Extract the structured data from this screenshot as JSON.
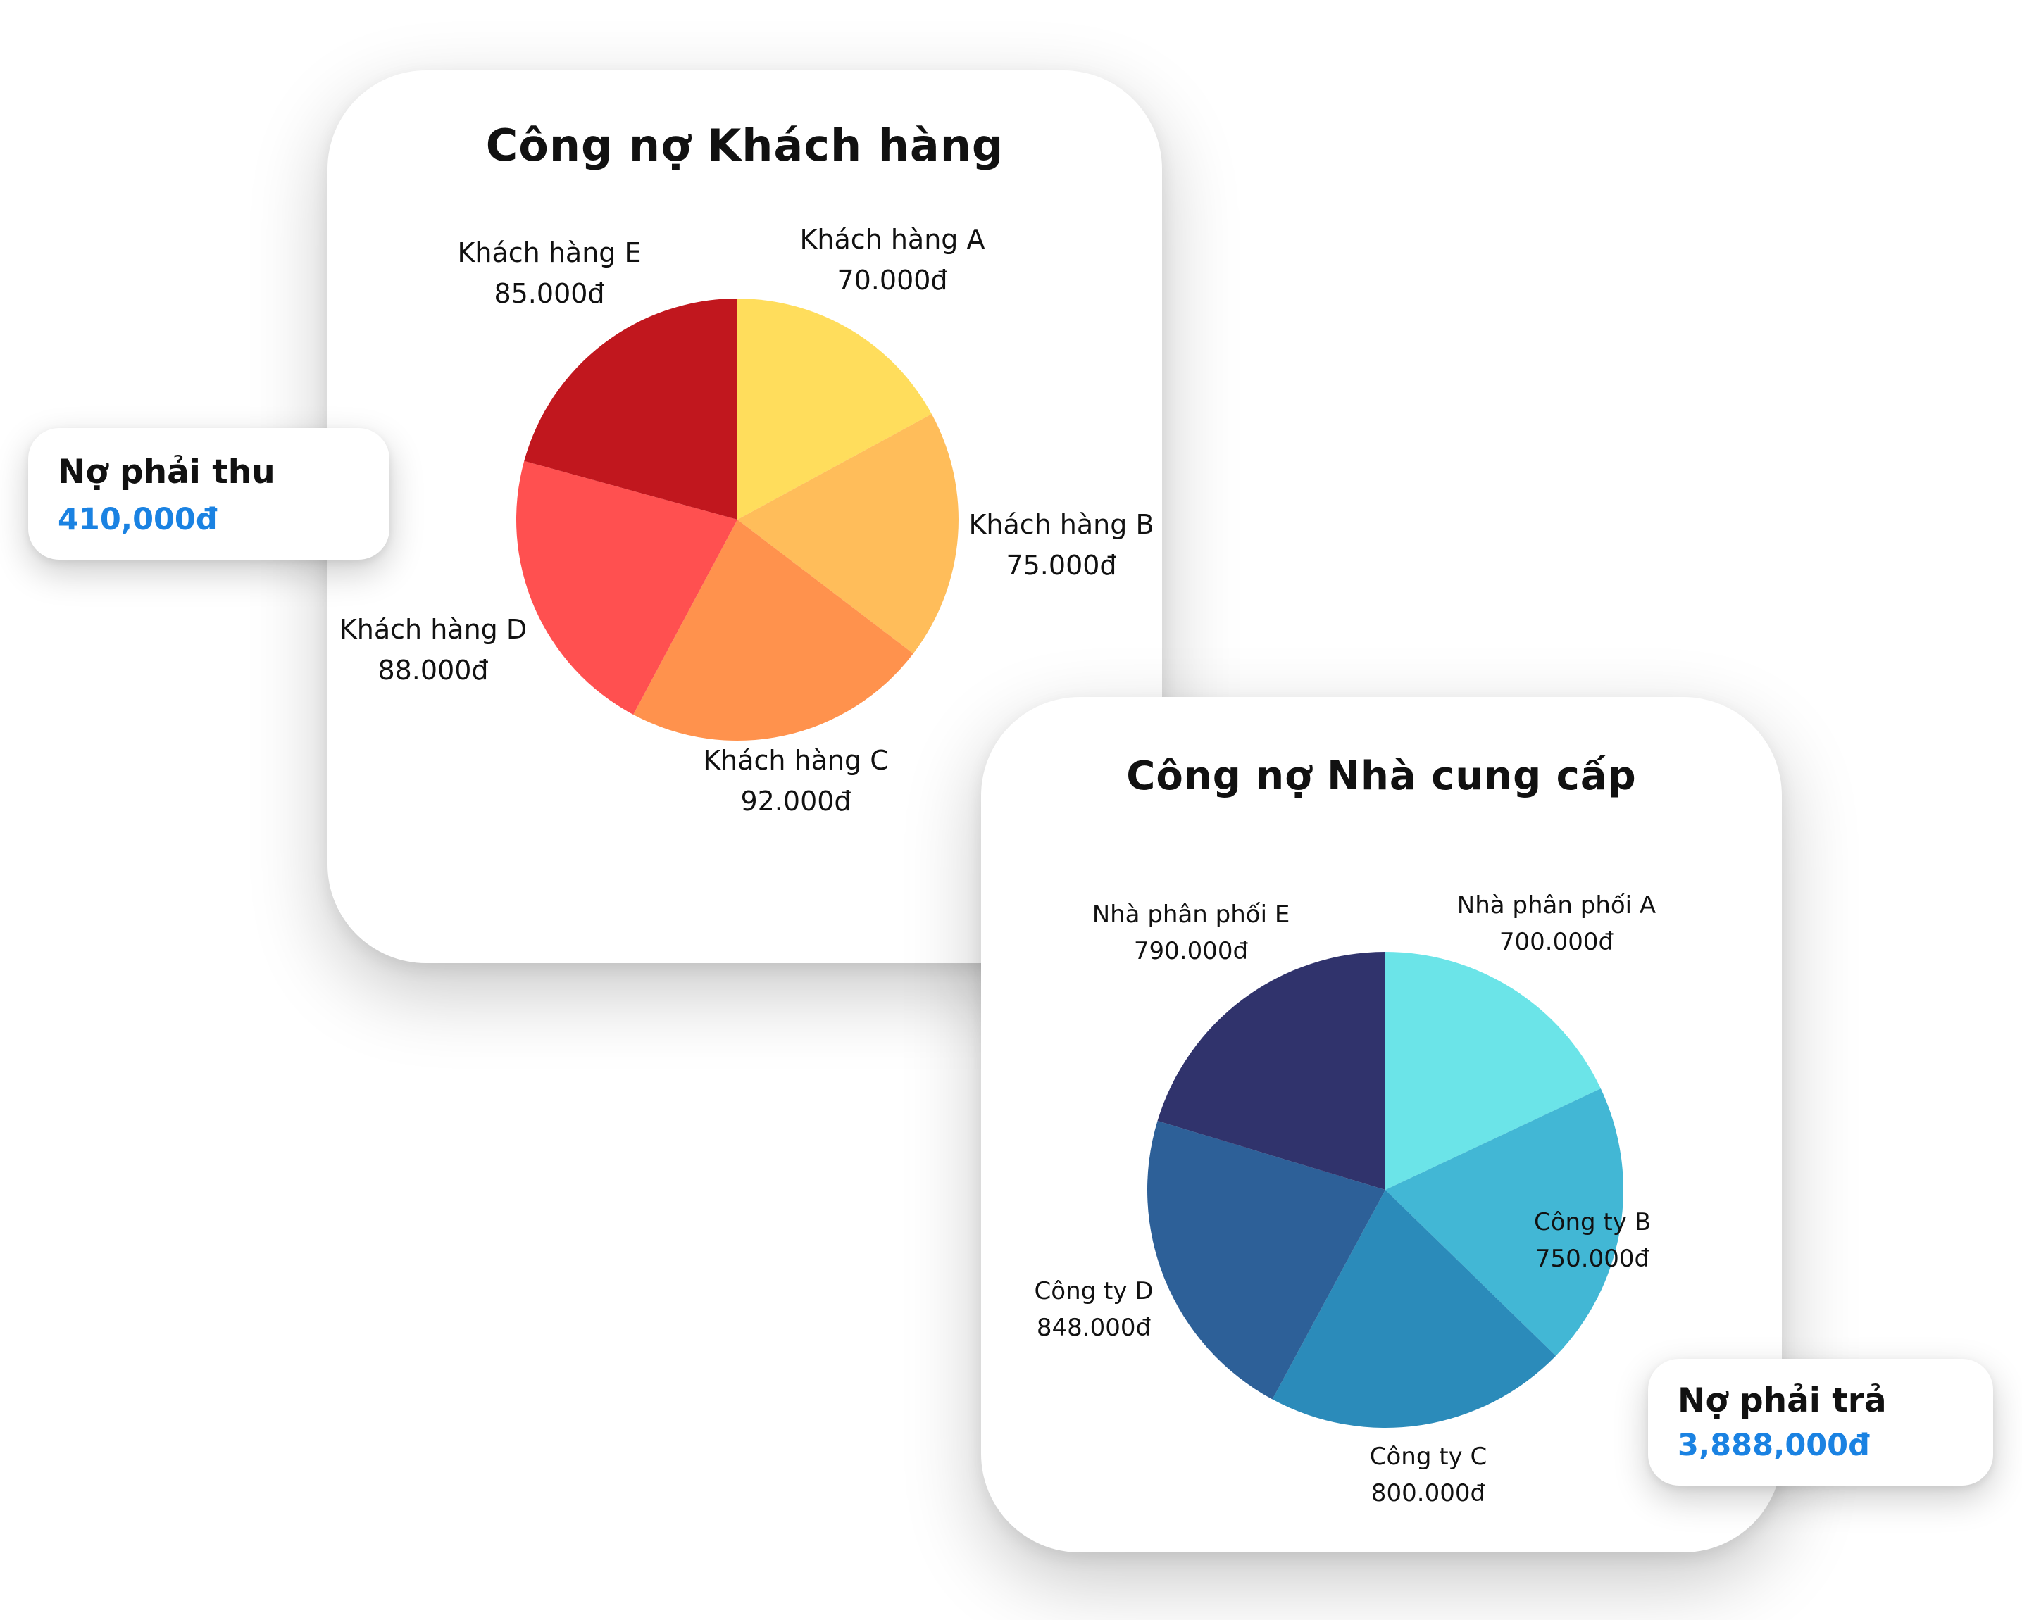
{
  "chart_data": [
    {
      "type": "pie",
      "title": "Công nợ Khách hàng",
      "start": "top, clockwise",
      "slices": [
        {
          "label": "Khách hàng A",
          "value_label": "70.000đ",
          "value": 70000,
          "color": "#FFDD5C"
        },
        {
          "label": "Khách hàng B",
          "value_label": "75.000đ",
          "value": 75000,
          "color": "#FFBD5A"
        },
        {
          "label": "Khách hàng C",
          "value_label": "92.000đ",
          "value": 92000,
          "color": "#FF924D"
        },
        {
          "label": "Khách hàng D",
          "value_label": "88.000đ",
          "value": 88000,
          "color": "#FF5050"
        },
        {
          "label": "Khách hàng E",
          "value_label": "85.000đ",
          "value": 85000,
          "color": "#C1171E"
        }
      ]
    },
    {
      "type": "pie",
      "title": "Công nợ Nhà cung cấp",
      "start": "top, clockwise",
      "slices": [
        {
          "label": "Nhà phân phối A",
          "value_label": "700.000đ",
          "value": 700000,
          "color": "#6BE4E8"
        },
        {
          "label": "Công ty B",
          "value_label": "750.000đ",
          "value": 750000,
          "color": "#42B7D5"
        },
        {
          "label": "Công ty C",
          "value_label": "800.000đ",
          "value": 800000,
          "color": "#2B8BBA"
        },
        {
          "label": "Công ty D",
          "value_label": "848.000đ",
          "value": 848000,
          "color": "#2D6098"
        },
        {
          "label": "Nhà phân phối E",
          "value_label": "790.000đ",
          "value": 790000,
          "color": "#30336C"
        }
      ]
    }
  ],
  "badges": {
    "receivable": {
      "title": "Nợ phải thu",
      "value": "410,000đ"
    },
    "payable": {
      "title": "Nợ phải trả",
      "value": "3,888,000đ"
    }
  },
  "colors": {
    "accent": "#1a82e2"
  }
}
